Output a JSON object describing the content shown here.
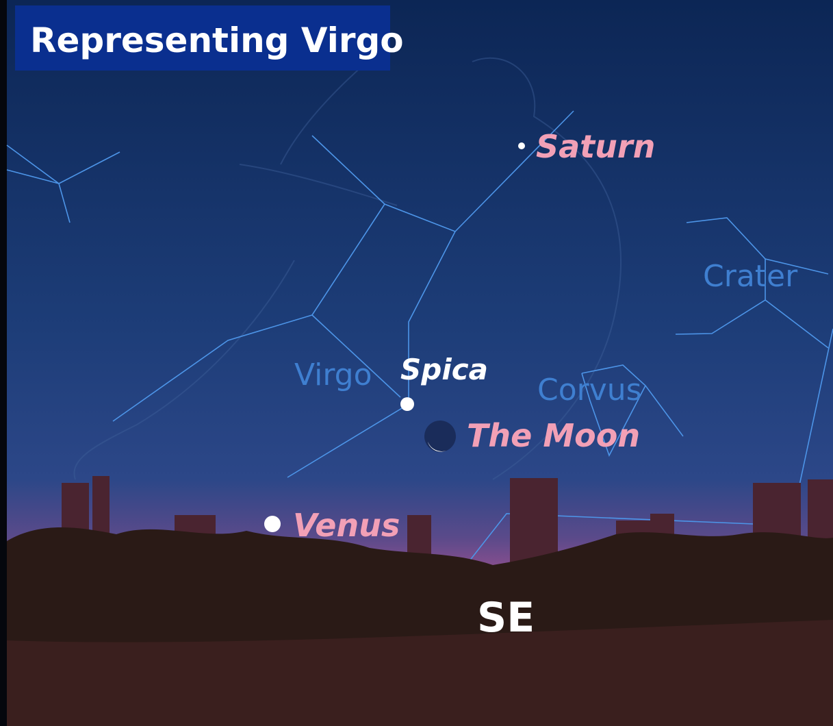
{
  "title": "Representing Virgo",
  "objects": [
    {
      "label": "Saturn"
    },
    {
      "label": "Spica"
    },
    {
      "label": "The Moon"
    },
    {
      "label": "Venus"
    }
  ],
  "constellations": [
    {
      "label": "Virgo"
    },
    {
      "label": "Corvus"
    },
    {
      "label": "Crater"
    }
  ],
  "direction": "SE"
}
